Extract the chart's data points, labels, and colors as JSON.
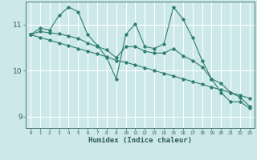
{
  "xlabel": "Humidex (Indice chaleur)",
  "ylabel": "",
  "background_color": "#cce8e8",
  "grid_color": "#ffffff",
  "line_color": "#2e7d6e",
  "xlim": [
    -0.5,
    23.5
  ],
  "ylim": [
    8.75,
    11.5
  ],
  "yticks": [
    9,
    10,
    11
  ],
  "xticks": [
    0,
    1,
    2,
    3,
    4,
    5,
    6,
    7,
    8,
    9,
    10,
    11,
    12,
    13,
    14,
    15,
    16,
    17,
    18,
    19,
    20,
    21,
    22,
    23
  ],
  "series1_x": [
    0,
    1,
    2,
    3,
    4,
    5,
    6,
    7,
    8,
    9,
    10,
    11,
    12,
    13,
    14,
    15,
    16,
    17,
    18,
    19,
    20,
    21,
    22,
    23
  ],
  "series1_y": [
    10.78,
    10.92,
    10.88,
    11.2,
    11.38,
    11.28,
    10.78,
    10.55,
    10.28,
    9.82,
    10.78,
    11.02,
    10.52,
    10.48,
    10.58,
    11.38,
    11.12,
    10.72,
    10.22,
    9.82,
    9.52,
    9.32,
    9.32,
    9.18
  ],
  "series2_x": [
    0,
    1,
    2,
    3,
    4,
    5,
    6,
    7,
    8,
    9,
    10,
    11,
    12,
    13,
    14,
    15,
    16,
    17,
    18,
    19,
    20,
    21,
    22,
    23
  ],
  "series2_y": [
    10.78,
    10.85,
    10.82,
    10.8,
    10.75,
    10.7,
    10.6,
    10.52,
    10.45,
    10.28,
    10.52,
    10.52,
    10.42,
    10.38,
    10.38,
    10.48,
    10.32,
    10.22,
    10.08,
    9.82,
    9.72,
    9.52,
    9.42,
    9.22
  ],
  "series3_x": [
    0,
    1,
    2,
    3,
    4,
    5,
    6,
    7,
    8,
    9,
    10,
    11,
    12,
    13,
    14,
    15,
    16,
    17,
    18,
    19,
    20,
    21,
    22,
    23
  ],
  "series3_y": [
    10.78,
    10.72,
    10.66,
    10.6,
    10.54,
    10.48,
    10.42,
    10.36,
    10.3,
    10.22,
    10.18,
    10.12,
    10.06,
    10.0,
    9.94,
    9.88,
    9.82,
    9.76,
    9.7,
    9.64,
    9.58,
    9.52,
    9.46,
    9.4
  ]
}
